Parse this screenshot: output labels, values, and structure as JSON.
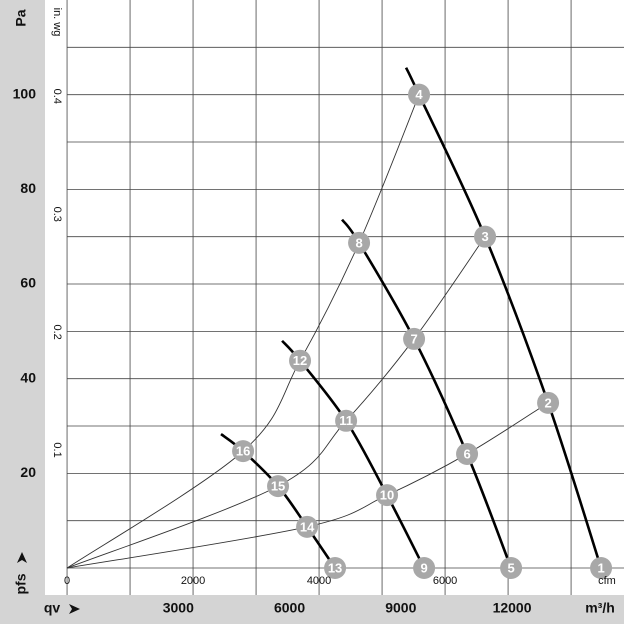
{
  "chart_data": {
    "type": "line",
    "y_label": "Pa",
    "y2_label": "in. wg",
    "y_axis_title": "pfs",
    "x_axis_title": "qv",
    "x_unit": "cfm",
    "x2_unit": "m³/h",
    "xlim": [
      -350,
      8840
    ],
    "xticks": [
      0,
      2000,
      4000,
      6000
    ],
    "xgrid": [
      0,
      1000,
      2000,
      3000,
      4000,
      5000,
      6000,
      7000,
      8000
    ],
    "x2lim": [
      -595,
      15019
    ],
    "x2ticks": [
      3000,
      6000,
      9000,
      12000
    ],
    "ylim": [
      -5.7,
      120
    ],
    "yticks": [
      20,
      40,
      60,
      80,
      100
    ],
    "ygrid": [
      0,
      10,
      20,
      30,
      40,
      50,
      60,
      70,
      80,
      90,
      100,
      110
    ],
    "y2lim": [
      -0.0229,
      0.4817
    ],
    "y2ticks": [
      0.1,
      0.2,
      0.3,
      0.4
    ],
    "series": [
      {
        "color": "#000000",
        "style": "thick",
        "x": [
          5381,
          5587,
          6635,
          7635,
          8476
        ],
        "values": [
          105.7,
          100,
          70,
          34.9,
          0
        ]
      },
      {
        "color": "#000000",
        "style": "thick",
        "x": [
          4365,
          4635,
          5508,
          6349,
          7048
        ],
        "values": [
          73.6,
          68.7,
          48.4,
          24.1,
          0
        ]
      },
      {
        "color": "#000000",
        "style": "thick",
        "x": [
          3413,
          3698,
          4429,
          5079,
          5667
        ],
        "values": [
          48,
          43.8,
          31.1,
          15.4,
          0
        ]
      },
      {
        "color": "#000000",
        "style": "thick",
        "x": [
          2444,
          2794,
          3349,
          3810,
          4254
        ],
        "values": [
          28.3,
          24.7,
          17.3,
          8.7,
          0
        ]
      },
      {
        "color": "#333333",
        "style": "thin",
        "x": [
          0,
          2794,
          3698,
          4635,
          5587
        ],
        "values": [
          0,
          24.7,
          43.8,
          68.7,
          100
        ]
      },
      {
        "color": "#333333",
        "style": "thin",
        "x": [
          0,
          3349,
          4429,
          5508,
          6635
        ],
        "values": [
          0,
          17.3,
          31.1,
          48.4,
          70
        ]
      },
      {
        "color": "#333333",
        "style": "thin",
        "x": [
          0,
          3810,
          5079,
          6349,
          7635
        ],
        "values": [
          0,
          8.7,
          15.4,
          24.1,
          34.9
        ]
      }
    ],
    "point_color": "#a8a8a8",
    "points": [
      {
        "label": "1",
        "x": 8476,
        "y": 0
      },
      {
        "label": "2",
        "x": 7635,
        "y": 34.9
      },
      {
        "label": "3",
        "x": 6635,
        "y": 70
      },
      {
        "label": "4",
        "x": 5587,
        "y": 100
      },
      {
        "label": "5",
        "x": 7048,
        "y": 0
      },
      {
        "label": "6",
        "x": 6349,
        "y": 24.1
      },
      {
        "label": "7",
        "x": 5508,
        "y": 48.4
      },
      {
        "label": "8",
        "x": 4635,
        "y": 68.7
      },
      {
        "label": "9",
        "x": 5667,
        "y": 0
      },
      {
        "label": "10",
        "x": 5079,
        "y": 15.4
      },
      {
        "label": "11",
        "x": 4429,
        "y": 31.1
      },
      {
        "label": "12",
        "x": 3698,
        "y": 43.8
      },
      {
        "label": "13",
        "x": 4254,
        "y": 0
      },
      {
        "label": "14",
        "x": 3810,
        "y": 8.7
      },
      {
        "label": "15",
        "x": 3349,
        "y": 17.3
      },
      {
        "label": "16",
        "x": 2794,
        "y": 24.7
      }
    ]
  }
}
